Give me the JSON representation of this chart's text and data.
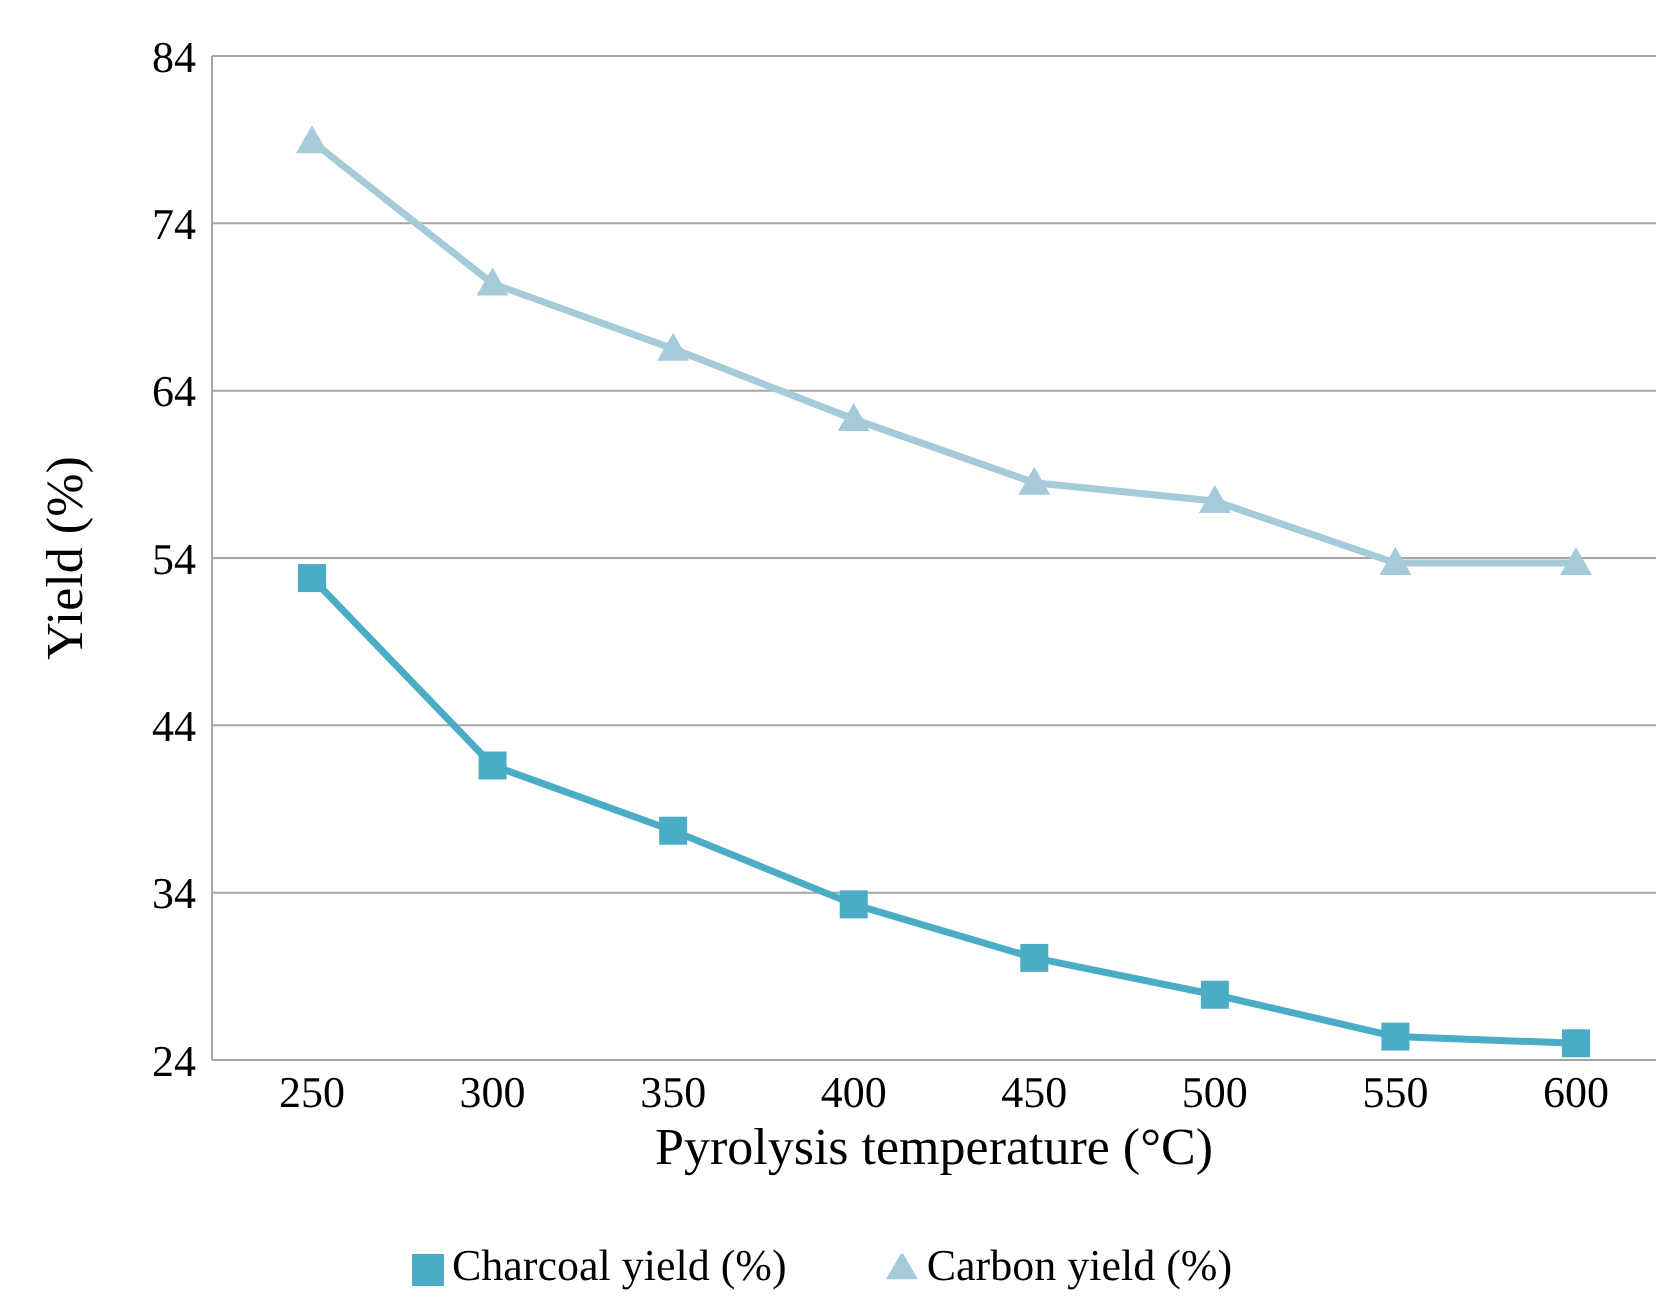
{
  "chart_data": {
    "type": "line",
    "xlabel": "Pyrolysis  temperature (°C)",
    "ylabel": "Yield (%)",
    "categories": [
      "250",
      "300",
      "350",
      "400",
      "450",
      "500",
      "550",
      "600"
    ],
    "series": [
      {
        "name": "Charcoal yield (%)",
        "color": "#4bacc6",
        "marker": "square",
        "values": [
          52.8,
          41.6,
          37.7,
          33.3,
          30.1,
          27.9,
          25.4,
          25.0
        ]
      },
      {
        "name": "Carbon yield (%)",
        "color": "#a5cbd9",
        "marker": "triangle",
        "values": [
          78.9,
          70.4,
          66.5,
          62.3,
          58.5,
          57.4,
          53.7,
          53.7
        ]
      }
    ],
    "ylim": [
      24,
      84
    ],
    "yticks": [
      24,
      34,
      44,
      54,
      64,
      74,
      84
    ],
    "grid": "y",
    "legend": "bottom"
  }
}
